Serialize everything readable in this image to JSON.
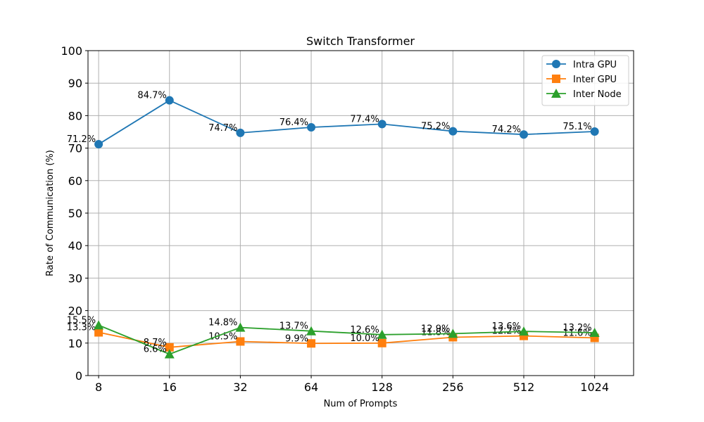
{
  "chart_data": {
    "type": "line",
    "title": "Switch Transformer",
    "xlabel": "Num of Prompts",
    "ylabel": "Rate of Communication (%)",
    "categories": [
      "8",
      "16",
      "32",
      "64",
      "128",
      "256",
      "512",
      "1024"
    ],
    "yticks": [
      "0",
      "10",
      "20",
      "30",
      "40",
      "50",
      "60",
      "70",
      "80",
      "90",
      "100"
    ],
    "ylim": [
      0,
      100
    ],
    "grid": true,
    "legend_position": "top-right",
    "series": [
      {
        "name": "Intra GPU",
        "color": "#1f77b4",
        "marker": "circle",
        "values": [
          71.2,
          84.7,
          74.7,
          76.4,
          77.4,
          75.2,
          74.2,
          75.1
        ],
        "labels": [
          "71.2%",
          "84.7%",
          "74.7%",
          "76.4%",
          "77.4%",
          "75.2%",
          "74.2%",
          "75.1%"
        ]
      },
      {
        "name": "Inter GPU",
        "color": "#ff7f0e",
        "marker": "square",
        "values": [
          13.3,
          8.7,
          10.5,
          9.9,
          10.0,
          11.8,
          12.2,
          11.6
        ],
        "labels": [
          "13.3%",
          "8.7%",
          "10.5%",
          "9.9%",
          "10.0%",
          "11.8%",
          "12.2%",
          "11.6%"
        ]
      },
      {
        "name": "Inter Node",
        "color": "#2ca02c",
        "marker": "triangle",
        "values": [
          15.5,
          6.6,
          14.8,
          13.7,
          12.6,
          12.9,
          13.6,
          13.2
        ],
        "labels": [
          "15.5%",
          "6.6%",
          "14.8%",
          "13.7%",
          "12.6%",
          "12.9%",
          "13.6%",
          "13.2%"
        ]
      }
    ]
  }
}
